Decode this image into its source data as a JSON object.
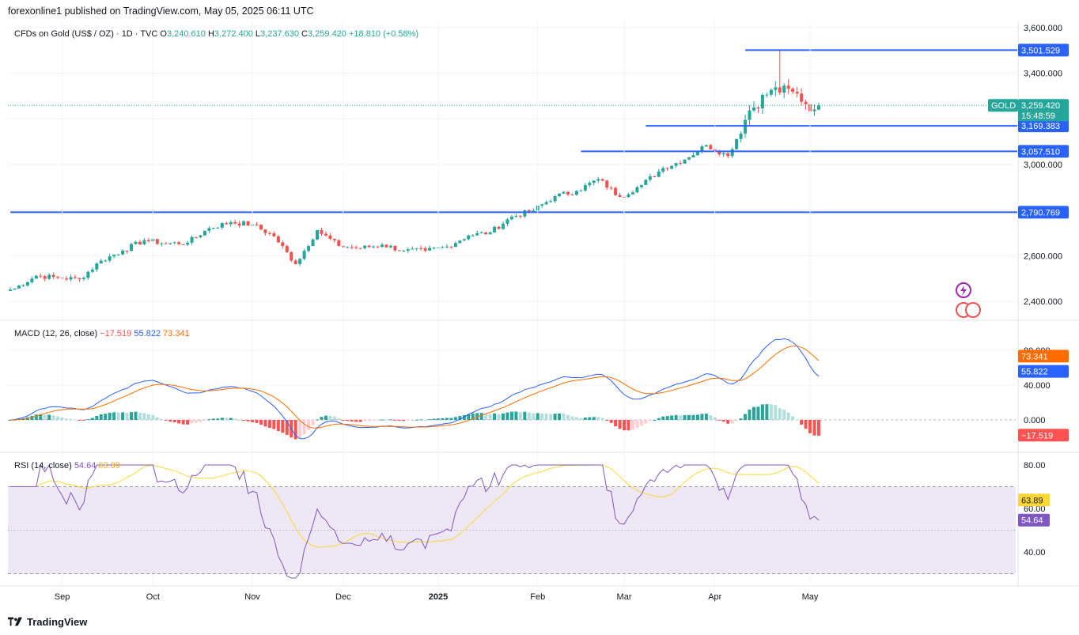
{
  "header": {
    "text": "forexonline1 published on TradingView.com, May 05, 2025 06:11 UTC"
  },
  "footer": {
    "brand": "TradingView"
  },
  "legend_price": {
    "symbol": "CFDs on Gold (US$ / OZ) · 1D · TVC",
    "o_label": "O",
    "o": "3,240.610",
    "h_label": "H",
    "h": "3,272.400",
    "l_label": "L",
    "l": "3,237.630",
    "c_label": "C",
    "c": "3,259.420",
    "change": "+18.810 (+0.58%)"
  },
  "legend_macd": {
    "name": "MACD (12, 26, close)",
    "v1": "−17.519",
    "v2": "55.822",
    "v3": "73.341"
  },
  "legend_rsi": {
    "name": "RSI (14, close)",
    "v1": "54.64",
    "v2": "63.89"
  },
  "colors": {
    "up": "#26a69a",
    "down": "#ef5350",
    "hline": "#2962ff",
    "macd": "#2962ff",
    "signal": "#ff6d00",
    "hist_up_strong": "#26a69a",
    "hist_up_weak": "#b2dfdb",
    "hist_down_strong": "#ff5252",
    "hist_down_weak": "#ffcdd2",
    "rsi": "#7e57c2",
    "rsi_ma": "#fdd835",
    "rsi_band": "#ede7f6",
    "grid": "#f0f3fa",
    "text": "#131722",
    "axis_text": "#131722"
  },
  "chart_data": [
    {
      "type": "candlestick",
      "title": "CFDs on Gold (US$ / OZ) · 1D · TVC",
      "ylim": [
        2340,
        3620
      ],
      "yticks": [
        2400,
        2600,
        2800,
        3000,
        3200,
        3400,
        3600
      ],
      "ytick_labels": [
        "2,400.000",
        "2,600.000",
        "2,800.000",
        "3,000.000",
        "3,200.000",
        "3,400.000",
        "3,600.000"
      ],
      "xticks": [
        {
          "label": "Sep",
          "date": "2024-09-02"
        },
        {
          "label": "Oct",
          "date": "2024-10-01"
        },
        {
          "label": "Nov",
          "date": "2024-11-01"
        },
        {
          "label": "Dec",
          "date": "2024-12-02"
        },
        {
          "label": "2025",
          "date": "2025-01-01"
        },
        {
          "label": "Feb",
          "date": "2025-02-03"
        },
        {
          "label": "Mar",
          "date": "2025-03-03"
        },
        {
          "label": "Apr",
          "date": "2025-04-01"
        },
        {
          "label": "May",
          "date": "2025-05-01"
        }
      ],
      "horizontal_lines": [
        {
          "value": 3501.529,
          "label": "3,501.529",
          "from_date": "2025-04-10"
        },
        {
          "value": 3169.383,
          "label": "3,169.383",
          "from_date": "2025-03-10"
        },
        {
          "value": 3057.51,
          "label": "3,057.510",
          "from_date": "2025-02-17"
        },
        {
          "value": 2790.769,
          "label": "2,790.769",
          "from_date": "2024-08-15"
        }
      ],
      "last_price": {
        "value": 3259.42,
        "label": "3,259.420",
        "countdown": "15:48:59",
        "symbol_tag": "GOLD"
      },
      "closes_weekly": [
        {
          "date": "2024-08-16",
          "close": 2456
        },
        {
          "date": "2024-08-23",
          "close": 2512
        },
        {
          "date": "2024-08-30",
          "close": 2503
        },
        {
          "date": "2024-09-06",
          "close": 2497
        },
        {
          "date": "2024-09-13",
          "close": 2578
        },
        {
          "date": "2024-09-20",
          "close": 2622
        },
        {
          "date": "2024-09-27",
          "close": 2668
        },
        {
          "date": "2024-10-04",
          "close": 2653
        },
        {
          "date": "2024-10-11",
          "close": 2657
        },
        {
          "date": "2024-10-18",
          "close": 2721
        },
        {
          "date": "2024-10-25",
          "close": 2747
        },
        {
          "date": "2024-11-01",
          "close": 2736
        },
        {
          "date": "2024-11-08",
          "close": 2685
        },
        {
          "date": "2024-11-15",
          "close": 2563
        },
        {
          "date": "2024-11-22",
          "close": 2712
        },
        {
          "date": "2024-11-29",
          "close": 2643
        },
        {
          "date": "2024-12-06",
          "close": 2633
        },
        {
          "date": "2024-12-13",
          "close": 2648
        },
        {
          "date": "2024-12-20",
          "close": 2622
        },
        {
          "date": "2024-12-27",
          "close": 2622
        },
        {
          "date": "2025-01-03",
          "close": 2640
        },
        {
          "date": "2025-01-10",
          "close": 2689
        },
        {
          "date": "2025-01-17",
          "close": 2702
        },
        {
          "date": "2025-01-24",
          "close": 2771
        },
        {
          "date": "2025-01-31",
          "close": 2798
        },
        {
          "date": "2025-02-07",
          "close": 2861
        },
        {
          "date": "2025-02-14",
          "close": 2883
        },
        {
          "date": "2025-02-21",
          "close": 2936
        },
        {
          "date": "2025-02-28",
          "close": 2858
        },
        {
          "date": "2025-03-07",
          "close": 2910
        },
        {
          "date": "2025-03-14",
          "close": 2984
        },
        {
          "date": "2025-03-21",
          "close": 3022
        },
        {
          "date": "2025-03-28",
          "close": 3085
        },
        {
          "date": "2025-04-04",
          "close": 3037
        },
        {
          "date": "2025-04-11",
          "close": 3237
        },
        {
          "date": "2025-04-18",
          "close": 3327
        },
        {
          "date": "2025-04-25",
          "close": 3319
        },
        {
          "date": "2025-05-02",
          "close": 3241
        },
        {
          "date": "2025-05-05",
          "close": 3259.42
        }
      ],
      "last_candle": {
        "date": "2025-05-05",
        "open": 3240.61,
        "high": 3272.4,
        "low": 3237.63,
        "close": 3259.42
      }
    },
    {
      "type": "line",
      "title": "MACD (12, 26, close)",
      "yticks": [
        0,
        40,
        80
      ],
      "ytick_labels": [
        "0.000",
        "40.000",
        "80.000"
      ],
      "ylim": [
        -85,
        120
      ],
      "series": [
        {
          "name": "MACD",
          "last": 55.822,
          "last_label": "55.822"
        },
        {
          "name": "Signal",
          "last": 73.341,
          "last_label": "73.341"
        },
        {
          "name": "Histogram",
          "last": -17.519,
          "last_label": "−17.519"
        }
      ]
    },
    {
      "type": "line",
      "title": "RSI (14, close)",
      "yticks": [
        40,
        60,
        80
      ],
      "ytick_labels": [
        "40.00",
        "60.00",
        "80.00"
      ],
      "ylim": [
        30,
        80
      ],
      "bands": [
        30,
        70
      ],
      "series": [
        {
          "name": "RSI",
          "last": 54.64,
          "last_label": "54.64"
        },
        {
          "name": "RSI-based MA",
          "last": 63.89,
          "last_label": "63.89"
        }
      ]
    }
  ]
}
